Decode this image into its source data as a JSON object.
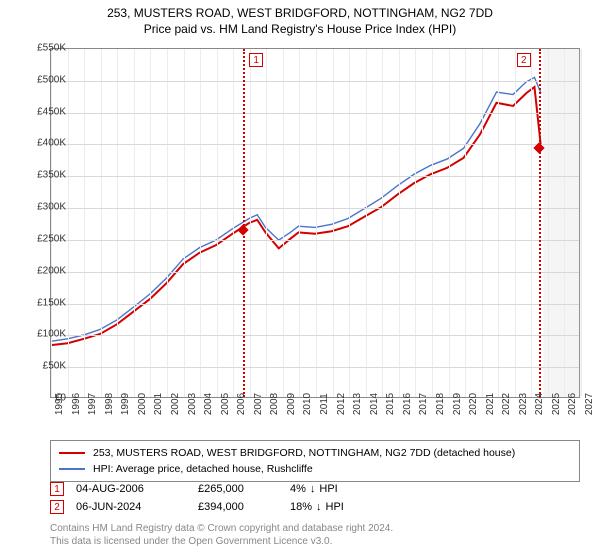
{
  "title": "253, MUSTERS ROAD, WEST BRIDGFORD, NOTTINGHAM, NG2 7DD",
  "subtitle": "Price paid vs. HM Land Registry's House Price Index (HPI)",
  "chart": {
    "type": "line",
    "background_color": "#ffffff",
    "grid_color": "#d8d8d8",
    "minor_grid_color": "#ececec",
    "border_color": "#888888",
    "xlim": [
      1995,
      2027
    ],
    "ylim": [
      0,
      550000
    ],
    "xticks": [
      1995,
      1996,
      1997,
      1998,
      1999,
      2000,
      2001,
      2002,
      2003,
      2004,
      2005,
      2006,
      2007,
      2008,
      2009,
      2010,
      2011,
      2012,
      2013,
      2014,
      2015,
      2016,
      2017,
      2018,
      2019,
      2020,
      2021,
      2022,
      2023,
      2024,
      2025,
      2026,
      2027
    ],
    "yticks": [
      0,
      50000,
      100000,
      150000,
      200000,
      250000,
      300000,
      350000,
      400000,
      450000,
      500000,
      550000
    ],
    "ytick_labels": [
      "£0",
      "£50K",
      "£100K",
      "£150K",
      "£200K",
      "£250K",
      "£300K",
      "£350K",
      "£400K",
      "£450K",
      "£500K",
      "£550K"
    ],
    "future_shade_from": 2024.7,
    "future_shade_color": "rgba(200,200,200,0.18)",
    "series": [
      {
        "name": "property",
        "label": "253, MUSTERS ROAD, WEST BRIDGFORD, NOTTINGHAM, NG2 7DD (detached house)",
        "color": "#d40000",
        "line_width": 2,
        "x": [
          1995,
          1996,
          1997,
          1998,
          1999,
          2000,
          2001,
          2002,
          2003,
          2004,
          2005,
          2006,
          2007,
          2007.5,
          2008,
          2008.8,
          2009.5,
          2010,
          2011,
          2012,
          2013,
          2014,
          2015,
          2016,
          2017,
          2018,
          2019,
          2020,
          2021,
          2022,
          2023,
          2023.8,
          2024.3,
          2024.7
        ],
        "y": [
          82000,
          85000,
          92000,
          100000,
          115000,
          135000,
          155000,
          180000,
          210000,
          228000,
          240000,
          258000,
          275000,
          280000,
          260000,
          235000,
          250000,
          260000,
          258000,
          262000,
          270000,
          285000,
          300000,
          320000,
          338000,
          352000,
          362000,
          378000,
          415000,
          465000,
          460000,
          480000,
          490000,
          394000
        ]
      },
      {
        "name": "hpi",
        "label": "HPI: Average price, detached house, Rushcliffe",
        "color": "#4a74c9",
        "line_width": 1.4,
        "x": [
          1995,
          1996,
          1997,
          1998,
          1999,
          2000,
          2001,
          2002,
          2003,
          2004,
          2005,
          2006,
          2007,
          2007.5,
          2008,
          2008.8,
          2009.5,
          2010,
          2011,
          2012,
          2013,
          2014,
          2015,
          2016,
          2017,
          2018,
          2019,
          2020,
          2021,
          2022,
          2023,
          2023.8,
          2024.3,
          2024.7
        ],
        "y": [
          88000,
          92000,
          98000,
          107000,
          122000,
          142000,
          163000,
          188000,
          218000,
          236000,
          248000,
          266000,
          282000,
          288000,
          268000,
          248000,
          260000,
          270000,
          268000,
          273000,
          282000,
          298000,
          314000,
          334000,
          352000,
          366000,
          376000,
          393000,
          432000,
          482000,
          478000,
          498000,
          505000,
          480000
        ]
      }
    ],
    "markers": [
      {
        "index": "1",
        "x": 2006.6,
        "y": 265000,
        "color": "#d40000"
      },
      {
        "index": "2",
        "x": 2024.45,
        "y": 394000,
        "color": "#d40000"
      }
    ],
    "label_fontsize": 10
  },
  "legend": {
    "items": [
      {
        "color": "#d40000",
        "thickness": 2,
        "label": "253, MUSTERS ROAD, WEST BRIDGFORD, NOTTINGHAM, NG2 7DD (detached house)"
      },
      {
        "color": "#4a74c9",
        "thickness": 1.4,
        "label": "HPI: Average price, detached house, Rushcliffe"
      }
    ]
  },
  "transactions": [
    {
      "index": "1",
      "date": "04-AUG-2006",
      "price": "£265,000",
      "diff_pct": "4%",
      "diff_dir": "↓",
      "diff_label": "HPI",
      "color": "#d40000"
    },
    {
      "index": "2",
      "date": "06-JUN-2024",
      "price": "£394,000",
      "diff_pct": "18%",
      "diff_dir": "↓",
      "diff_label": "HPI",
      "color": "#d40000"
    }
  ],
  "footnote_line1": "Contains HM Land Registry data © Crown copyright and database right 2024.",
  "footnote_line2": "This data is licensed under the Open Government Licence v3.0."
}
